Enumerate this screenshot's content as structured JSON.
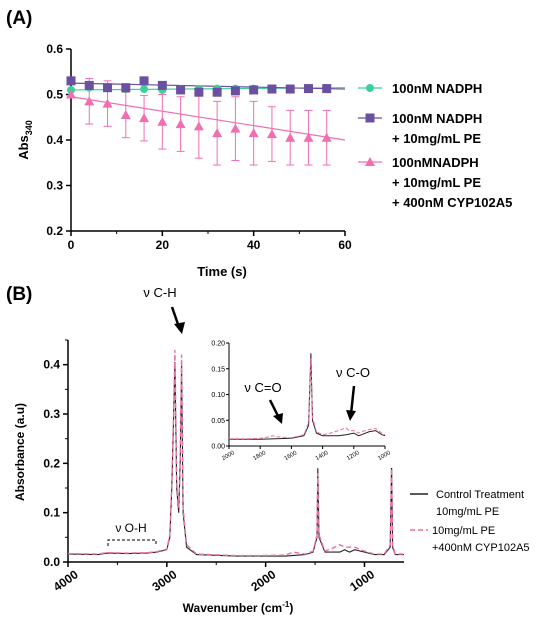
{
  "colors": {
    "nadph": "#3ccf9a",
    "pe": "#6b4fa0",
    "cyp": "#f06fb0",
    "control": "#222222",
    "treated": "#ee6fa4"
  },
  "chart_data": [
    {
      "type": "line",
      "panel_label": "(A)",
      "xlabel": "Time (s)",
      "ylabel_main": "Abs",
      "ylabel_sub": "340",
      "xlim": [
        0,
        60
      ],
      "ylim": [
        0.2,
        0.6
      ],
      "xticks": [
        0,
        20,
        40,
        60
      ],
      "yticks": [
        0.2,
        0.3,
        0.4,
        0.5,
        0.6
      ],
      "legend_position": "right",
      "series": [
        {
          "name_lines": [
            "100nM NADPH"
          ],
          "marker": "circle",
          "color_key": "nadph",
          "x": [
            0,
            4,
            8,
            12,
            16,
            20,
            24,
            28,
            32,
            36,
            40,
            44,
            48,
            52,
            56
          ],
          "y": [
            0.51,
            0.515,
            0.515,
            0.512,
            0.512,
            0.51,
            0.512,
            0.512,
            0.513,
            0.513,
            0.513,
            0.513,
            0.513,
            0.513,
            0.514
          ],
          "fit": [
            [
              0,
              0.51
            ],
            [
              60,
              0.515
            ]
          ]
        },
        {
          "name_lines": [
            "100nM NADPH",
            "+ 10mg/mL PE"
          ],
          "marker": "square",
          "color_key": "pe",
          "x": [
            0,
            4,
            8,
            12,
            16,
            20,
            24,
            28,
            32,
            36,
            40,
            44,
            48,
            52,
            56
          ],
          "y": [
            0.53,
            0.52,
            0.515,
            0.515,
            0.53,
            0.52,
            0.51,
            0.505,
            0.505,
            0.508,
            0.51,
            0.512,
            0.512,
            0.513,
            0.513
          ],
          "fit": [
            [
              0,
              0.525
            ],
            [
              60,
              0.512
            ]
          ]
        },
        {
          "name_lines": [
            "100nMNADPH",
            "+ 10mg/mL PE",
            "+ 400nM CYP102A5"
          ],
          "marker": "triangle",
          "color_key": "cyp",
          "x": [
            0,
            4,
            8,
            12,
            16,
            20,
            24,
            28,
            32,
            36,
            40,
            44,
            48,
            52,
            56
          ],
          "y": [
            0.5,
            0.485,
            0.48,
            0.455,
            0.448,
            0.44,
            0.435,
            0.43,
            0.415,
            0.425,
            0.415,
            0.413,
            0.405,
            0.405,
            0.405
          ],
          "err": [
            0.0,
            0.05,
            0.05,
            0.05,
            0.05,
            0.06,
            0.06,
            0.07,
            0.07,
            0.07,
            0.07,
            0.06,
            0.06,
            0.06,
            0.06
          ],
          "fit": [
            [
              0,
              0.495
            ],
            [
              60,
              0.4
            ]
          ]
        }
      ]
    },
    {
      "type": "line",
      "panel_label": "(B)",
      "xlabel": "Wavenumber (cm",
      "xlabel_sup": "-1",
      "xlabel_close": ")",
      "ylabel": "Absorbance (a.u)",
      "xlim": [
        4000,
        600
      ],
      "ylim": [
        0.0,
        0.45
      ],
      "xticks": [
        4000,
        3000,
        2000,
        1000
      ],
      "yticks": [
        0.0,
        0.1,
        0.2,
        0.3,
        0.4
      ],
      "legend_position": "right",
      "annotations": {
        "ch": "ν C-H",
        "oh": "ν O-H",
        "co_double": "ν C=O",
        "co_single": "ν C-O"
      },
      "series": [
        {
          "name_lines": [
            "Control Treatment",
            "10mg/mL PE"
          ],
          "color_key": "control",
          "style": "solid",
          "points": [
            [
              4000,
              0.016
            ],
            [
              3700,
              0.015
            ],
            [
              3600,
              0.018
            ],
            [
              3400,
              0.017
            ],
            [
              3200,
              0.018
            ],
            [
              3100,
              0.02
            ],
            [
              3000,
              0.025
            ],
            [
              2970,
              0.05
            ],
            [
              2950,
              0.15
            ],
            [
              2930,
              0.3
            ],
            [
              2918,
              0.405
            ],
            [
              2900,
              0.15
            ],
            [
              2880,
              0.1
            ],
            [
              2865,
              0.2
            ],
            [
              2850,
              0.4
            ],
            [
              2835,
              0.1
            ],
            [
              2800,
              0.03
            ],
            [
              2700,
              0.015
            ],
            [
              2300,
              0.012
            ],
            [
              2100,
              0.012
            ],
            [
              1800,
              0.012
            ],
            [
              1600,
              0.015
            ],
            [
              1520,
              0.02
            ],
            [
              1480,
              0.05
            ],
            [
              1472,
              0.19
            ],
            [
              1460,
              0.05
            ],
            [
              1400,
              0.02
            ],
            [
              1300,
              0.02
            ],
            [
              1250,
              0.02
            ],
            [
              1200,
              0.025
            ],
            [
              1150,
              0.02
            ],
            [
              1100,
              0.025
            ],
            [
              1000,
              0.02
            ],
            [
              900,
              0.015
            ],
            [
              800,
              0.015
            ],
            [
              740,
              0.03
            ],
            [
              725,
              0.2
            ],
            [
              715,
              0.03
            ],
            [
              690,
              0.015
            ],
            [
              600,
              0.015
            ]
          ]
        },
        {
          "name_lines": [
            "10mg/mL PE",
            "+400nM CYP102A5"
          ],
          "color_key": "treated",
          "style": "dashed",
          "points": [
            [
              4000,
              0.017
            ],
            [
              3700,
              0.016
            ],
            [
              3600,
              0.019
            ],
            [
              3400,
              0.018
            ],
            [
              3200,
              0.019
            ],
            [
              3100,
              0.021
            ],
            [
              3000,
              0.026
            ],
            [
              2970,
              0.055
            ],
            [
              2950,
              0.16
            ],
            [
              2930,
              0.31
            ],
            [
              2918,
              0.43
            ],
            [
              2900,
              0.16
            ],
            [
              2880,
              0.11
            ],
            [
              2865,
              0.21
            ],
            [
              2850,
              0.42
            ],
            [
              2835,
              0.11
            ],
            [
              2800,
              0.035
            ],
            [
              2700,
              0.016
            ],
            [
              2300,
              0.013
            ],
            [
              2100,
              0.013
            ],
            [
              1800,
              0.014
            ],
            [
              1720,
              0.02
            ],
            [
              1600,
              0.016
            ],
            [
              1520,
              0.022
            ],
            [
              1480,
              0.055
            ],
            [
              1472,
              0.18
            ],
            [
              1460,
              0.055
            ],
            [
              1400,
              0.022
            ],
            [
              1300,
              0.03
            ],
            [
              1250,
              0.035
            ],
            [
              1200,
              0.03
            ],
            [
              1150,
              0.03
            ],
            [
              1100,
              0.03
            ],
            [
              1000,
              0.022
            ],
            [
              900,
              0.016
            ],
            [
              800,
              0.016
            ],
            [
              740,
              0.035
            ],
            [
              725,
              0.19
            ],
            [
              715,
              0.035
            ],
            [
              690,
              0.016
            ],
            [
              600,
              0.016
            ]
          ]
        }
      ],
      "inset": {
        "xlim": [
          2000,
          1000
        ],
        "ylim": [
          0.0,
          0.2
        ],
        "xticks": [
          2000,
          1800,
          1600,
          1400,
          1200,
          1000
        ],
        "yticks": [
          0.0,
          0.05,
          0.1,
          0.15,
          0.2
        ],
        "series": [
          {
            "color_key": "control",
            "style": "solid",
            "points": [
              [
                2000,
                0.013
              ],
              [
                1900,
                0.013
              ],
              [
                1800,
                0.013
              ],
              [
                1700,
                0.014
              ],
              [
                1600,
                0.015
              ],
              [
                1520,
                0.02
              ],
              [
                1490,
                0.04
              ],
              [
                1475,
                0.18
              ],
              [
                1465,
                0.05
              ],
              [
                1440,
                0.025
              ],
              [
                1400,
                0.02
              ],
              [
                1350,
                0.02
              ],
              [
                1300,
                0.02
              ],
              [
                1250,
                0.022
              ],
              [
                1200,
                0.025
              ],
              [
                1170,
                0.02
              ],
              [
                1150,
                0.022
              ],
              [
                1100,
                0.028
              ],
              [
                1060,
                0.03
              ],
              [
                1020,
                0.022
              ],
              [
                1000,
                0.02
              ]
            ]
          },
          {
            "color_key": "treated",
            "style": "dashed",
            "points": [
              [
                2000,
                0.014
              ],
              [
                1900,
                0.014
              ],
              [
                1800,
                0.015
              ],
              [
                1740,
                0.018
              ],
              [
                1720,
                0.02
              ],
              [
                1700,
                0.018
              ],
              [
                1600,
                0.016
              ],
              [
                1520,
                0.022
              ],
              [
                1490,
                0.045
              ],
              [
                1475,
                0.17
              ],
              [
                1465,
                0.055
              ],
              [
                1440,
                0.028
              ],
              [
                1400,
                0.022
              ],
              [
                1350,
                0.025
              ],
              [
                1300,
                0.03
              ],
              [
                1250,
                0.035
              ],
              [
                1230,
                0.03
              ],
              [
                1200,
                0.03
              ],
              [
                1170,
                0.025
              ],
              [
                1150,
                0.028
              ],
              [
                1100,
                0.032
              ],
              [
                1060,
                0.034
              ],
              [
                1020,
                0.025
              ],
              [
                1000,
                0.022
              ]
            ]
          }
        ]
      }
    }
  ]
}
